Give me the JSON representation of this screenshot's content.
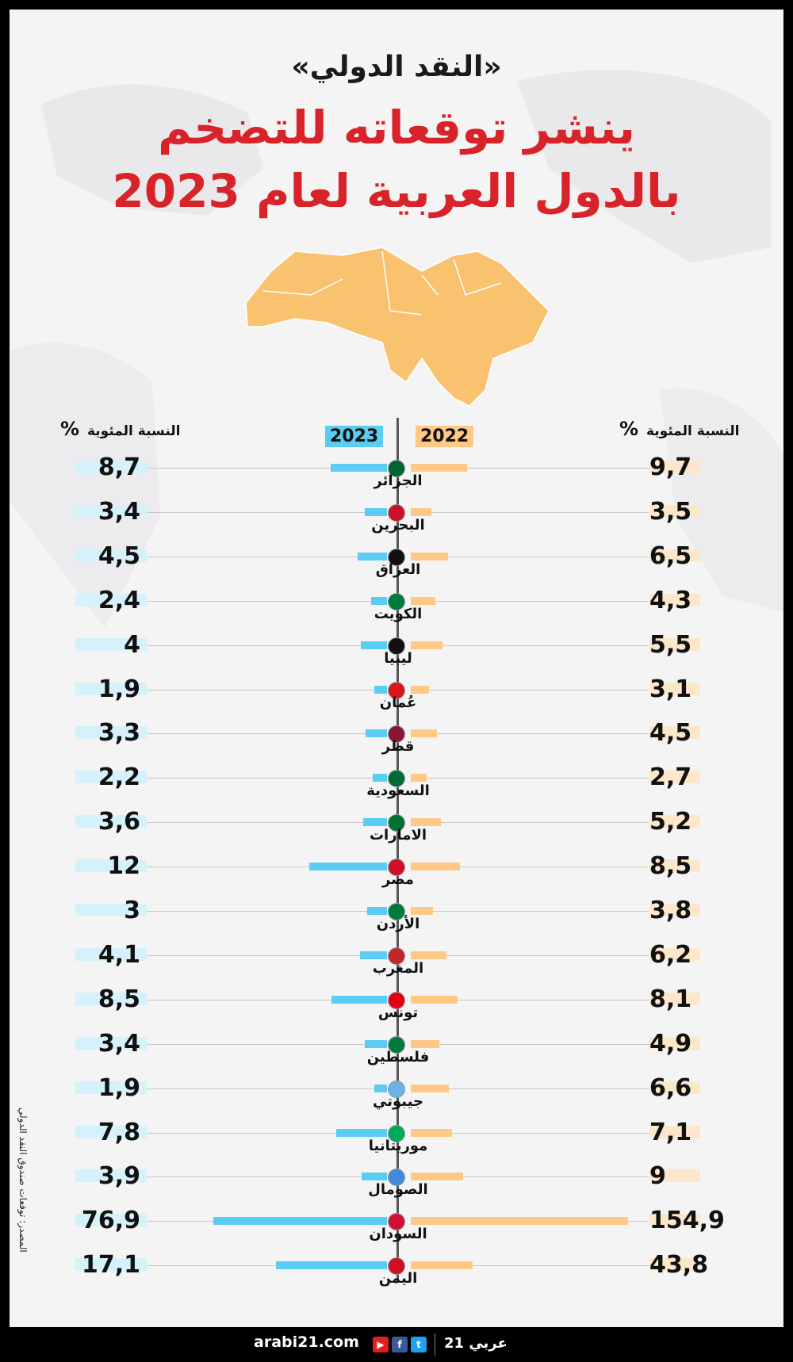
{
  "header": {
    "line1": "«النقد الدولي»",
    "line2": "ينشر توقعاته للتضخم",
    "line3": "بالدول العربية لعام 2023"
  },
  "chart_data": {
    "type": "bar",
    "title": "«النقد الدولي» ينشر توقعاته للتضخم بالدول العربية لعام 2023",
    "axis_label_left": "النسبة المئوية",
    "axis_label_right": "النسبة المئوية",
    "percent_sign": "%",
    "categories": [
      "الجزائر",
      "البحرين",
      "العراق",
      "الكويت",
      "ليبيا",
      "عُمان",
      "قطر",
      "السعودية",
      "الامارات",
      "مصر",
      "الأردن",
      "المغرب",
      "تونس",
      "فلسطين",
      "جيبوتي",
      "موريتانيا",
      "الصومال",
      "السودان",
      "اليمن"
    ],
    "series": [
      {
        "name": "2023",
        "color": "#5bcdf2",
        "values": [
          8.7,
          3.4,
          4.5,
          2.4,
          4,
          1.9,
          3.3,
          2.2,
          3.6,
          12,
          3,
          4.1,
          8.5,
          3.4,
          1.9,
          7.8,
          3.9,
          76.9,
          17.1
        ],
        "labels": [
          "8,7",
          "3,4",
          "4,5",
          "2,4",
          "4",
          "1,9",
          "3,3",
          "2,2",
          "3,6",
          "12",
          "3",
          "4,1",
          "8,5",
          "3,4",
          "1,9",
          "7,8",
          "3,9",
          "76,9",
          "17,1"
        ]
      },
      {
        "name": "2022",
        "color": "#ffc985",
        "values": [
          9.7,
          3.5,
          6.5,
          4.3,
          5.5,
          3.1,
          4.5,
          2.7,
          5.2,
          8.5,
          3.8,
          6.2,
          8.1,
          4.9,
          6.6,
          7.1,
          9,
          154.9,
          43.8
        ],
        "labels": [
          "9,7",
          "3,5",
          "6,5",
          "4,3",
          "5,5",
          "3,1",
          "4,5",
          "2,7",
          "5,2",
          "8,5",
          "3,8",
          "6,2",
          "8,1",
          "4,9",
          "6,6",
          "7,1",
          "9",
          "154,9",
          "43,8"
        ]
      }
    ]
  },
  "flags": [
    "#006633",
    "#ce1126",
    "#111111",
    "#007a3d",
    "#111111",
    "#db161b",
    "#8a1538",
    "#006c35",
    "#00732f",
    "#ce1126",
    "#007a3d",
    "#c1272d",
    "#e70013",
    "#007a3d",
    "#6ab2e7",
    "#00a95c",
    "#4189dd",
    "#d21034",
    "#ce1126"
  ],
  "source": "المصدر: توقعات صندوق النقد الدولي",
  "footer": {
    "site": "arabi21.com",
    "youtube": "▶",
    "facebook": "f",
    "twitter": "t",
    "brand": "عربي 21"
  }
}
